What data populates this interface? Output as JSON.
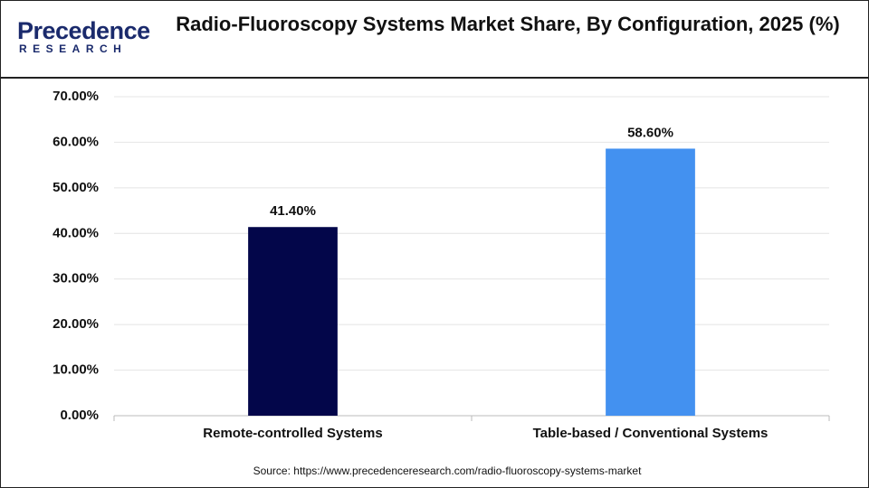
{
  "logo": {
    "name": "Precedence",
    "tagline": "RESEARCH"
  },
  "chart_data": {
    "type": "bar",
    "title": "Radio-Fluoroscopy Systems Market Share, By Configuration, 2025 (%)",
    "categories": [
      "Remote-controlled Systems",
      "Table-based / Conventional Systems"
    ],
    "values": [
      41.4,
      58.6
    ],
    "value_labels": [
      "41.40%",
      "58.60%"
    ],
    "colors": [
      "#03064a",
      "#4391f0"
    ],
    "ylim": [
      0,
      70
    ],
    "yticks": [
      {
        "value": 0,
        "label": "0.00%"
      },
      {
        "value": 10,
        "label": "10.00%"
      },
      {
        "value": 20,
        "label": "20.00%"
      },
      {
        "value": 30,
        "label": "30.00%"
      },
      {
        "value": 40,
        "label": "40.00%"
      },
      {
        "value": 50,
        "label": "50.00%"
      },
      {
        "value": 60,
        "label": "60.00%"
      },
      {
        "value": 70,
        "label": "70.00%"
      }
    ],
    "grid": true,
    "source": "Source: https://www.precedenceresearch.com/radio-fluoroscopy-systems-market"
  }
}
